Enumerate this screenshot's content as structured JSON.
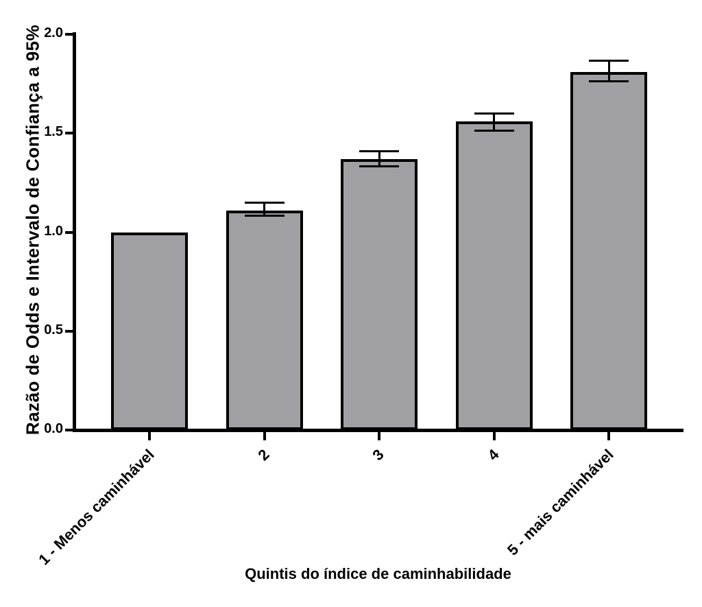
{
  "figure": {
    "background": "#ffffff",
    "bar_fill": "#a09fa4",
    "axis_color": "#000000"
  },
  "chart_data": {
    "type": "bar",
    "title": "",
    "xlabel": "Quintis do índice de caminhabilidade",
    "ylabel": "Razão de Odds e Intervalo de Confiança a 95%",
    "categories": [
      "1 - Menos caminhável",
      "2",
      "3",
      "4",
      "5 - mais caminhável"
    ],
    "values": [
      1.0,
      1.11,
      1.37,
      1.56,
      1.81
    ],
    "error_low": [
      null,
      1.08,
      1.33,
      1.51,
      1.76
    ],
    "error_high": [
      null,
      1.15,
      1.41,
      1.6,
      1.87
    ],
    "ylim": [
      0.0,
      2.0
    ],
    "yticks": [
      0.0,
      0.5,
      1.0,
      1.5,
      2.0
    ],
    "ytick_labels": [
      "0.0",
      "0.5",
      "1.0",
      "1.5",
      "2.0"
    ],
    "grid": false,
    "legend_position": "none",
    "bar_color_hex": "#a09fa4",
    "error_bars": "95% CI caps"
  }
}
